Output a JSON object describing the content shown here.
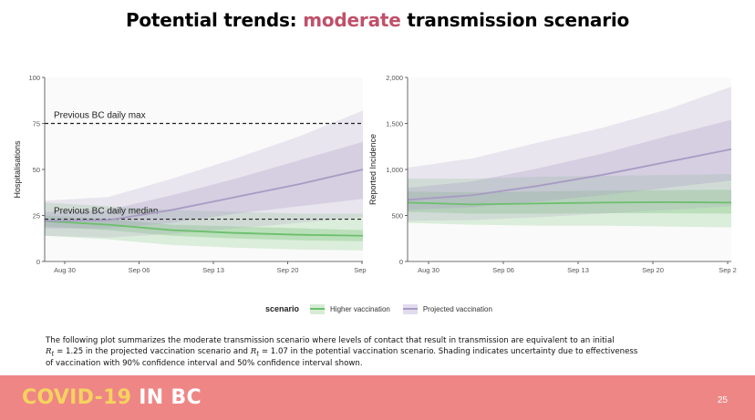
{
  "slide": {
    "title_prefix": "Potential trends: ",
    "title_accent": "moderate",
    "title_suffix": " transmission scenario",
    "page_number": "25",
    "brand_part1": "COVID-19",
    "brand_part2": " IN BC",
    "caption_line1": "The following plot summarizes the moderate transmission scenario where levels of contact that result in transmission are equivalent to an initial",
    "caption_r": "R",
    "caption_t": "t",
    "caption_eq1": " = 1.25 in the projected vaccination scenario and ",
    "caption_eq2": " = 1.07 in the potential vaccination scenario. Shading indicates uncertainty due to effectiveness",
    "caption_line3": "of vaccination with 90% confidence interval and 50% confidence  interval shown.",
    "accent_color": "#c0506a",
    "footer_color": "#ef8686"
  },
  "legend": {
    "title": "scenario",
    "items": [
      {
        "label": "Higher vaccination",
        "color": "#6cbf6c"
      },
      {
        "label": "Projected vaccination",
        "color": "#a89bc4"
      }
    ]
  },
  "chart_data": [
    {
      "type": "line",
      "ylabel": "Hospitalisations",
      "xlabel": "",
      "ylim": [
        0,
        100
      ],
      "yticks": [
        "0",
        "25",
        "50",
        "75",
        "100"
      ],
      "x_ticks": [
        "Aug 30",
        "Sep 06",
        "Sep 13",
        "Sep 20",
        "Sep :"
      ],
      "x": [
        "Aug 26",
        "Aug 30",
        "Sep 06",
        "Sep 13",
        "Sep 20",
        "Sep 27"
      ],
      "reference_lines": [
        {
          "label": "Previous BC daily max",
          "value": 75
        },
        {
          "label": "Previous BC daily median",
          "value": 23
        }
      ],
      "series": [
        {
          "name": "Higher vaccination",
          "color": "#6cbf6c",
          "values": [
            22,
            20,
            17,
            15.5,
            14.5,
            14
          ],
          "ci50": [
            [
              19,
              25
            ],
            [
              17,
              23
            ],
            [
              14,
              20
            ],
            [
              12.5,
              19
            ],
            [
              11.5,
              18
            ],
            [
              11,
              17
            ]
          ],
          "ci90": [
            [
              14,
              32
            ],
            [
              12,
              30
            ],
            [
              9,
              28
            ],
            [
              7.5,
              27
            ],
            [
              6.5,
              26
            ],
            [
              6,
              26
            ]
          ]
        },
        {
          "name": "Projected vaccination",
          "color": "#a89bc4",
          "values": [
            22,
            22.5,
            28,
            35,
            42,
            50
          ],
          "ci50": [
            [
              18,
              27
            ],
            [
              18,
              28
            ],
            [
              21,
              36
            ],
            [
              26,
              45
            ],
            [
              30,
              55
            ],
            [
              34,
              65
            ]
          ],
          "ci90": [
            [
              14,
              33
            ],
            [
              13,
              35
            ],
            [
              15,
              45
            ],
            [
              18,
              56
            ],
            [
              21,
              68
            ],
            [
              24,
              82
            ]
          ]
        }
      ]
    },
    {
      "type": "line",
      "ylabel": "Reported Incidence",
      "xlabel": "",
      "ylim": [
        0,
        2000
      ],
      "yticks": [
        "0",
        "500",
        "1,000",
        "1,500",
        "2,000"
      ],
      "x_ticks": [
        "Aug 30",
        "Sep 06",
        "Sep 13",
        "Sep 20",
        "Sep 2"
      ],
      "x": [
        "Aug 26",
        "Aug 30",
        "Sep 06",
        "Sep 13",
        "Sep 20",
        "Sep 27"
      ],
      "series": [
        {
          "name": "Higher vaccination",
          "color": "#6cbf6c",
          "values": [
            640,
            620,
            630,
            640,
            645,
            640
          ],
          "ci50": [
            [
              540,
              760
            ],
            [
              520,
              750
            ],
            [
              520,
              760
            ],
            [
              525,
              770
            ],
            [
              525,
              775
            ],
            [
              520,
              780
            ]
          ],
          "ci90": [
            [
              420,
              900
            ],
            [
              400,
              900
            ],
            [
              390,
              920
            ],
            [
              390,
              930
            ],
            [
              380,
              940
            ],
            [
              370,
              950
            ]
          ]
        },
        {
          "name": "Projected vaccination",
          "color": "#a89bc4",
          "values": [
            670,
            720,
            820,
            940,
            1080,
            1220
          ],
          "ci50": [
            [
              560,
              800
            ],
            [
              590,
              870
            ],
            [
              650,
              1010
            ],
            [
              720,
              1170
            ],
            [
              800,
              1360
            ],
            [
              880,
              1540
            ]
          ],
          "ci90": [
            [
              440,
              1020
            ],
            [
              450,
              1120
            ],
            [
              480,
              1290
            ],
            [
              520,
              1450
            ],
            [
              560,
              1650
            ],
            [
              600,
              1900
            ]
          ]
        }
      ]
    }
  ]
}
